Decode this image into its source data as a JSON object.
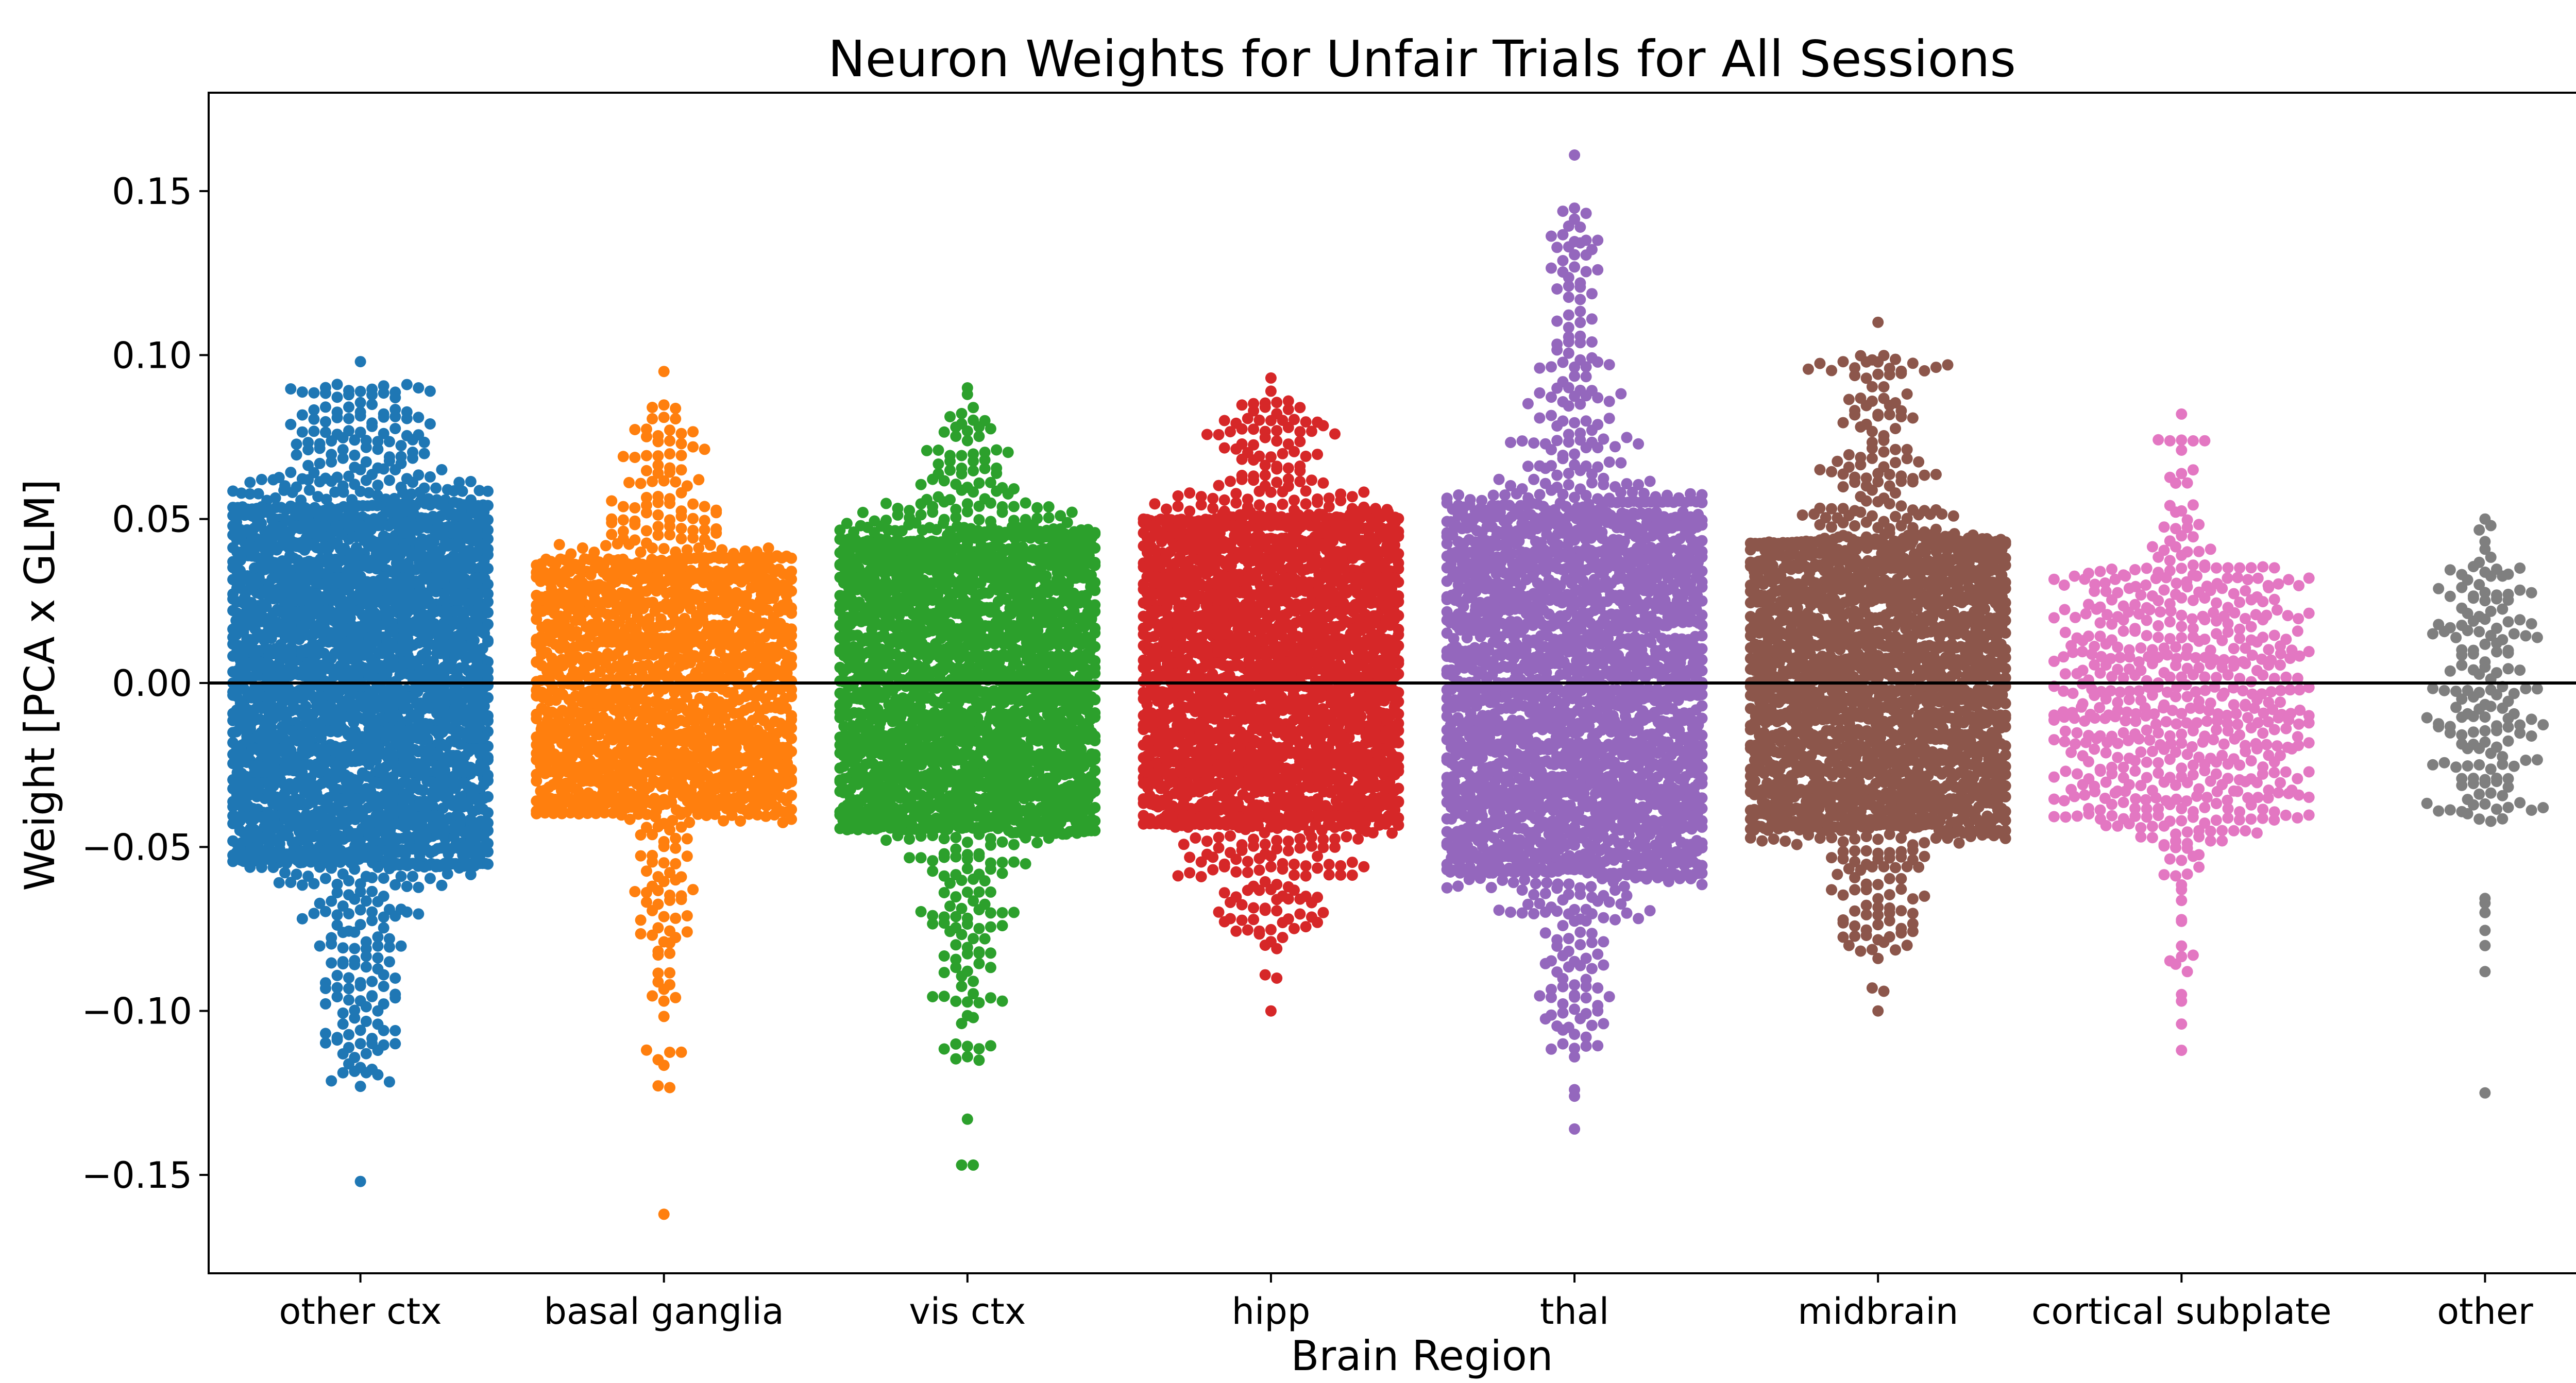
{
  "chart_data": {
    "type": "scatter",
    "subtype": "swarm",
    "title": "Neuron Weights for Unfair Trials for All Sessions",
    "xlabel": "Brain Region",
    "ylabel": "Weight [PCA x GLM]",
    "ylim": [
      -0.18,
      0.18
    ],
    "yticks": [
      -0.15,
      -0.1,
      -0.05,
      0.0,
      0.05,
      0.1,
      0.15
    ],
    "ytick_labels": [
      "−0.15",
      "−0.10",
      "−0.05",
      "0.00",
      "0.05",
      "0.10",
      "0.15"
    ],
    "reference_line": 0.0,
    "grid": false,
    "categories": [
      "other ctx",
      "basal ganglia",
      "vis ctx",
      "hipp",
      "thal",
      "midbrain",
      "cortical subplate",
      "other"
    ],
    "series": [
      {
        "category": "other ctx",
        "color": "#1f77b4",
        "approx_count": 2600,
        "core_range": [
          -0.055,
          0.054
        ],
        "approx_max": 0.098,
        "approx_min": -0.152,
        "outliers": [
          0.098,
          0.09,
          0.089,
          0.087,
          0.081,
          0.079,
          -0.085,
          -0.09,
          -0.096,
          -0.1,
          -0.106,
          -0.11,
          -0.112,
          -0.123,
          -0.152
        ]
      },
      {
        "category": "basal ganglia",
        "color": "#ff7f0e",
        "approx_count": 1500,
        "core_range": [
          -0.04,
          0.038
        ],
        "approx_max": 0.095,
        "approx_min": -0.162,
        "outliers": [
          0.095,
          0.065,
          0.062,
          0.058,
          -0.063,
          -0.066,
          -0.071,
          -0.092,
          -0.162
        ]
      },
      {
        "category": "vis ctx",
        "color": "#2ca02c",
        "approx_count": 2200,
        "core_range": [
          -0.045,
          0.044
        ],
        "approx_max": 0.09,
        "approx_min": -0.147,
        "outliers": [
          0.09,
          0.088,
          0.084,
          0.08,
          -0.074,
          -0.078,
          -0.082,
          -0.096,
          -0.097,
          -0.133,
          -0.147,
          -0.147
        ]
      },
      {
        "category": "hipp",
        "color": "#d62728",
        "approx_count": 2200,
        "core_range": [
          -0.043,
          0.05
        ],
        "approx_max": 0.093,
        "approx_min": -0.1,
        "outliers": [
          0.093,
          0.089,
          0.086,
          0.084,
          -0.07,
          -0.073,
          -0.089,
          -0.09,
          -0.1
        ]
      },
      {
        "category": "thal",
        "color": "#9467bd",
        "approx_count": 2300,
        "core_range": [
          -0.058,
          0.055
        ],
        "approx_max": 0.161,
        "approx_min": -0.136,
        "outliers": [
          0.161,
          0.135,
          0.135,
          0.126,
          0.122,
          0.111,
          0.104,
          -0.086,
          -0.093,
          -0.1,
          -0.108,
          -0.114,
          -0.124,
          -0.126,
          -0.136
        ]
      },
      {
        "category": "midbrain",
        "color": "#8c564b",
        "approx_count": 2000,
        "core_range": [
          -0.045,
          0.043
        ],
        "approx_max": 0.11,
        "approx_min": -0.1,
        "outliers": [
          0.11,
          0.097,
          0.083,
          0.074,
          -0.08,
          -0.084,
          -0.093,
          -0.094,
          -0.1
        ]
      },
      {
        "category": "cortical subplate",
        "color": "#e377c2",
        "approx_count": 600,
        "core_range": [
          -0.045,
          0.035
        ],
        "approx_max": 0.082,
        "approx_min": -0.112,
        "outliers": [
          0.082,
          0.071,
          0.065,
          0.061,
          -0.083,
          -0.088,
          -0.095,
          -0.097,
          -0.104,
          -0.112
        ]
      },
      {
        "category": "other",
        "color": "#7f7f7f",
        "approx_count": 170,
        "core_range": [
          -0.04,
          0.033
        ],
        "approx_max": 0.05,
        "approx_min": -0.125,
        "outliers": [
          0.05,
          0.048,
          -0.07,
          -0.125
        ]
      }
    ]
  }
}
